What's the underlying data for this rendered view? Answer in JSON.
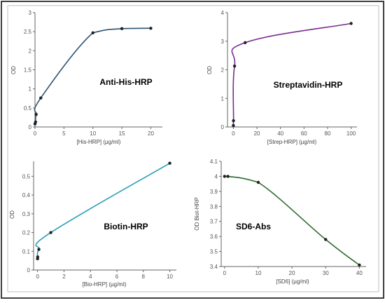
{
  "chart_data": [
    {
      "type": "line",
      "title": "Anti-His-HRP",
      "xlabel": "[His-HRP] (µg/ml)",
      "ylabel": "OD",
      "xlim": [
        0,
        22
      ],
      "ylim": [
        0,
        3
      ],
      "xticks": [
        0,
        5,
        10,
        15,
        20
      ],
      "yticks": [
        0,
        0.5,
        1,
        1.5,
        2,
        2.5,
        3
      ],
      "color": "#2d5473",
      "series": [
        {
          "x": [
            0,
            0.1,
            0.2,
            1,
            10,
            15,
            20
          ],
          "y": [
            0.08,
            0.13,
            0.33,
            0.76,
            2.47,
            2.58,
            2.59
          ]
        }
      ]
    },
    {
      "type": "line",
      "title": "Streptavidin-HRP",
      "xlabel": "[Strep-HRP] (µg/ml)",
      "ylabel": "OD",
      "xlim": [
        -5,
        105
      ],
      "ylim": [
        0,
        4
      ],
      "xticks": [
        0,
        20,
        40,
        60,
        80,
        100
      ],
      "yticks": [
        0,
        1,
        2,
        3,
        4
      ],
      "color": "#7b2d8e",
      "series": [
        {
          "x": [
            0,
            0.1,
            1,
            10,
            100
          ],
          "y": [
            0.05,
            0.22,
            2.13,
            2.95,
            3.62
          ]
        }
      ]
    },
    {
      "type": "line",
      "title": "Biotin-HRP",
      "xlabel": "[Bio-HRP] (µg/ml)",
      "ylabel": "OD",
      "xlim": [
        -0.3,
        10.5
      ],
      "ylim": [
        0,
        0.58
      ],
      "xticks": [
        0,
        2,
        4,
        6,
        8,
        10
      ],
      "yticks": [
        0,
        0.1,
        0.2,
        0.3,
        0.4,
        0.5
      ],
      "color": "#2a9fb5",
      "series": [
        {
          "x": [
            0,
            0.01,
            0.1,
            1,
            10
          ],
          "y": [
            0.06,
            0.07,
            0.11,
            0.2,
            0.57
          ]
        }
      ]
    },
    {
      "type": "line",
      "title": "SD6-Abs",
      "xlabel": "[SD6] (µg/ml)",
      "ylabel": "OD Biot-HRP",
      "xlim": [
        -1,
        42
      ],
      "ylim": [
        3.4,
        4.1
      ],
      "xticks": [
        0,
        10,
        20,
        30,
        40
      ],
      "yticks": [
        3.4,
        3.5,
        3.6,
        3.7,
        3.8,
        3.9,
        4,
        4.1
      ],
      "color": "#2e6b2e",
      "series": [
        {
          "x": [
            0,
            1,
            10,
            30,
            40
          ],
          "y": [
            4.0,
            4.0,
            3.96,
            3.58,
            3.41
          ]
        }
      ]
    }
  ]
}
